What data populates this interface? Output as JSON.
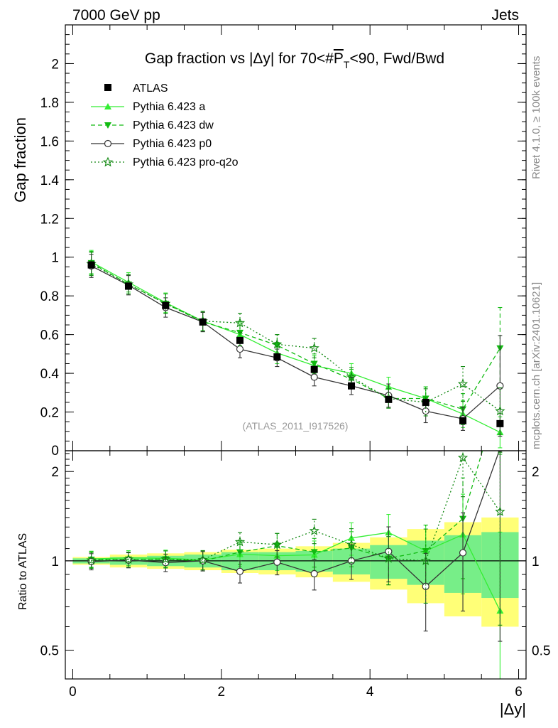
{
  "header": {
    "energy_label": "7000 GeV pp",
    "process_label": "Jets"
  },
  "side_labels": {
    "rivet": "Rivet 4.1.0, ≥ 100k events",
    "mcplots": "mcplots.cern.ch [arXiv:2401.10621]"
  },
  "chart_data": {
    "type": "scatter",
    "title": "Gap fraction vs |Δy| for 70<#P̅T<90, Fwd/Bwd",
    "title_parts": {
      "pre": "Gap fraction vs |Δy| for 70<#",
      "p": "P",
      "t": "T",
      "post": "<90, Fwd/Bwd"
    },
    "ylabel": "Gap fraction",
    "ratio_ylabel": "Ratio to ATLAS",
    "xlabel": "|Δy|",
    "analysis_tag": "(ATLAS_2011_I917526)",
    "xlim": [
      -0.1,
      6.1
    ],
    "ylim": [
      0,
      2.2
    ],
    "ratio_ylim": [
      0.4,
      2.35
    ],
    "x_ticks": [
      0,
      2,
      4,
      6
    ],
    "y_ticks": [
      0.2,
      0.4,
      0.6,
      0.8,
      1,
      1.2,
      1.4,
      1.6,
      1.8,
      2
    ],
    "ratio_ticks": [
      0.5,
      1,
      2
    ],
    "x": [
      0.25,
      0.75,
      1.25,
      1.75,
      2.25,
      2.75,
      3.25,
      3.75,
      4.25,
      4.75,
      5.25,
      5.75
    ],
    "data": {
      "name": "ATLAS",
      "values": [
        0.96,
        0.85,
        0.75,
        0.665,
        0.57,
        0.485,
        0.42,
        0.335,
        0.265,
        0.25,
        0.155,
        0.14
      ],
      "band_inner": [
        0.02,
        0.03,
        0.04,
        0.05,
        0.07,
        0.07,
        0.08,
        0.1,
        0.13,
        0.17,
        0.22,
        0.25
      ],
      "band_outer": [
        0.03,
        0.05,
        0.06,
        0.07,
        0.09,
        0.1,
        0.12,
        0.15,
        0.2,
        0.28,
        0.35,
        0.4
      ]
    },
    "series": [
      {
        "name": "Pythia 6.423 a",
        "color": "#33ee33",
        "dash": "",
        "marker": "triangle-up",
        "values": [
          0.975,
          0.87,
          0.765,
          0.67,
          0.6,
          0.505,
          0.44,
          0.4,
          0.33,
          0.27,
          0.19,
          0.095
        ],
        "errors": [
          0.06,
          0.05,
          0.05,
          0.05,
          0.055,
          0.055,
          0.05,
          0.05,
          0.05,
          0.06,
          0.07,
          0.08
        ]
      },
      {
        "name": "Pythia 6.423 dw",
        "color": "#11bb11",
        "dash": "6,4",
        "marker": "triangle-down",
        "values": [
          0.97,
          0.86,
          0.76,
          0.665,
          0.61,
          0.545,
          0.45,
          0.37,
          0.27,
          0.27,
          0.215,
          0.53
        ],
        "errors": [
          0.06,
          0.05,
          0.05,
          0.05,
          0.055,
          0.055,
          0.05,
          0.05,
          0.05,
          0.06,
          0.08,
          0.21
        ]
      },
      {
        "name": "Pythia 6.423 p0",
        "color": "#333333",
        "dash": "",
        "marker": "circle-open",
        "values": [
          0.955,
          0.855,
          0.74,
          0.665,
          0.525,
          0.48,
          0.38,
          0.335,
          0.285,
          0.205,
          0.165,
          0.335
        ],
        "errors": [
          0.06,
          0.05,
          0.05,
          0.05,
          0.045,
          0.045,
          0.045,
          0.045,
          0.06,
          0.06,
          0.06,
          0.26
        ]
      },
      {
        "name": "Pythia 6.423 pro-q2o",
        "color": "#118811",
        "dash": "2,3",
        "marker": "star-open",
        "values": [
          0.965,
          0.86,
          0.76,
          0.67,
          0.66,
          0.55,
          0.53,
          0.38,
          0.27,
          0.25,
          0.345,
          0.205
        ],
        "errors": [
          0.06,
          0.05,
          0.05,
          0.05,
          0.05,
          0.05,
          0.05,
          0.05,
          0.05,
          0.07,
          0.09,
          0.12
        ]
      }
    ],
    "legend_position": "top-left"
  }
}
